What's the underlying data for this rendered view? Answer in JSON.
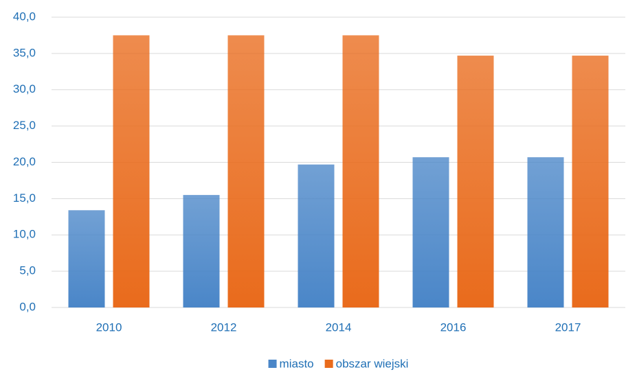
{
  "chart_data": {
    "type": "bar",
    "categories": [
      "2010",
      "2012",
      "2014",
      "2016",
      "2017"
    ],
    "series": [
      {
        "name": "miasto",
        "color": "#4a86c8",
        "values": [
          13.4,
          15.5,
          19.7,
          20.7,
          20.7
        ]
      },
      {
        "name": "obszar wiejski",
        "color": "#e96b1c",
        "values": [
          37.5,
          37.5,
          37.5,
          34.7,
          34.7
        ]
      }
    ],
    "ylim": [
      0,
      40
    ],
    "yticks": [
      {
        "value": 0,
        "label": "0,0"
      },
      {
        "value": 5,
        "label": "5,0"
      },
      {
        "value": 10,
        "label": "10,0"
      },
      {
        "value": 15,
        "label": "15,0"
      },
      {
        "value": 20,
        "label": "20,0"
      },
      {
        "value": 25,
        "label": "25,0"
      },
      {
        "value": 30,
        "label": "30,0"
      },
      {
        "value": 35,
        "label": "35,0"
      },
      {
        "value": 40,
        "label": "40,0"
      }
    ],
    "grid": true,
    "legend": "bottom"
  }
}
